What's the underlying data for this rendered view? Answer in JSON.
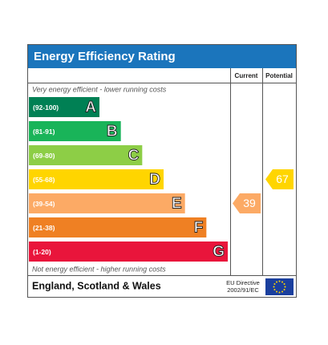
{
  "header": {
    "title": "Energy Efficiency Rating"
  },
  "columns": [
    "Current",
    "Potential"
  ],
  "top_note": "Very energy efficient - lower running costs",
  "bands": [
    {
      "range": "(92-100)",
      "letter": "A",
      "color": "#008054"
    },
    {
      "range": "(81-91)",
      "letter": "B",
      "color": "#19b459"
    },
    {
      "range": "(69-80)",
      "letter": "C",
      "color": "#8dce46"
    },
    {
      "range": "(55-68)",
      "letter": "D",
      "color": "#ffd500"
    },
    {
      "range": "(39-54)",
      "letter": "E",
      "color": "#fcaa65"
    },
    {
      "range": "(21-38)",
      "letter": "F",
      "color": "#ef8023"
    },
    {
      "range": "(1-20)",
      "letter": "G",
      "color": "#e9153b"
    }
  ],
  "bottom_note": "Not energy efficient - higher running costs",
  "current": 39,
  "potential": 67,
  "footer": {
    "region": "England, Scotland & Wales",
    "directive": [
      "EU Directive",
      "2002/91/EC"
    ]
  }
}
